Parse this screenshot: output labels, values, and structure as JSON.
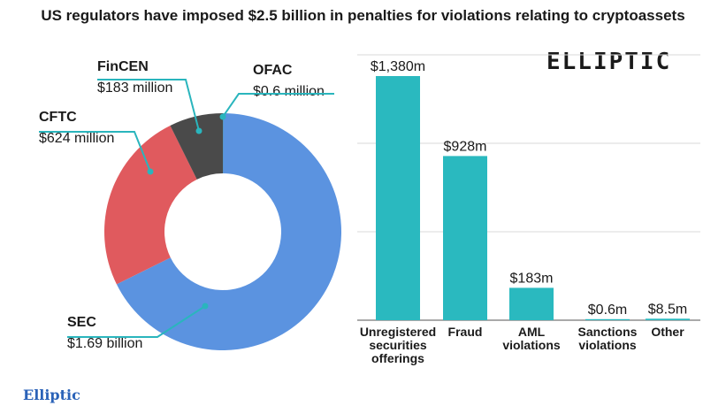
{
  "title": "US regulators have imposed $2.5 billion in penalties for violations relating to cryptoassets",
  "logo_text": "ELLIPTIC",
  "footer_logo": "Elliptic",
  "chart_data": [
    {
      "type": "pie",
      "variant": "donut",
      "slices": [
        {
          "name": "OFAC",
          "value_label": "$0.6 million",
          "value": 0.6,
          "color": "#3aa84f"
        },
        {
          "name": "SEC",
          "value_label": "$1.69 billion",
          "value": 1690,
          "color": "#5b93e0"
        },
        {
          "name": "CFTC",
          "value_label": "$624 million",
          "value": 624,
          "color": "#e05a5e"
        },
        {
          "name": "FinCEN",
          "value_label": "$183 million",
          "value": 183,
          "color": "#4a4a4a"
        }
      ],
      "leader_color": "#2ab5bd"
    },
    {
      "type": "bar",
      "categories": [
        [
          "Unregistered",
          "securities",
          "offerings"
        ],
        [
          "Fraud"
        ],
        [
          "AML",
          "violations"
        ],
        [
          "Sanctions",
          "violations"
        ],
        [
          "Other"
        ]
      ],
      "values": [
        1380,
        928,
        183,
        0.6,
        8.5
      ],
      "value_labels": [
        "$1,380m",
        "$928m",
        "$183m",
        "$0.6m",
        "$8.5m"
      ],
      "ylim": [
        0,
        1500
      ],
      "grid": true,
      "bar_color": "#2ab9bf"
    }
  ]
}
